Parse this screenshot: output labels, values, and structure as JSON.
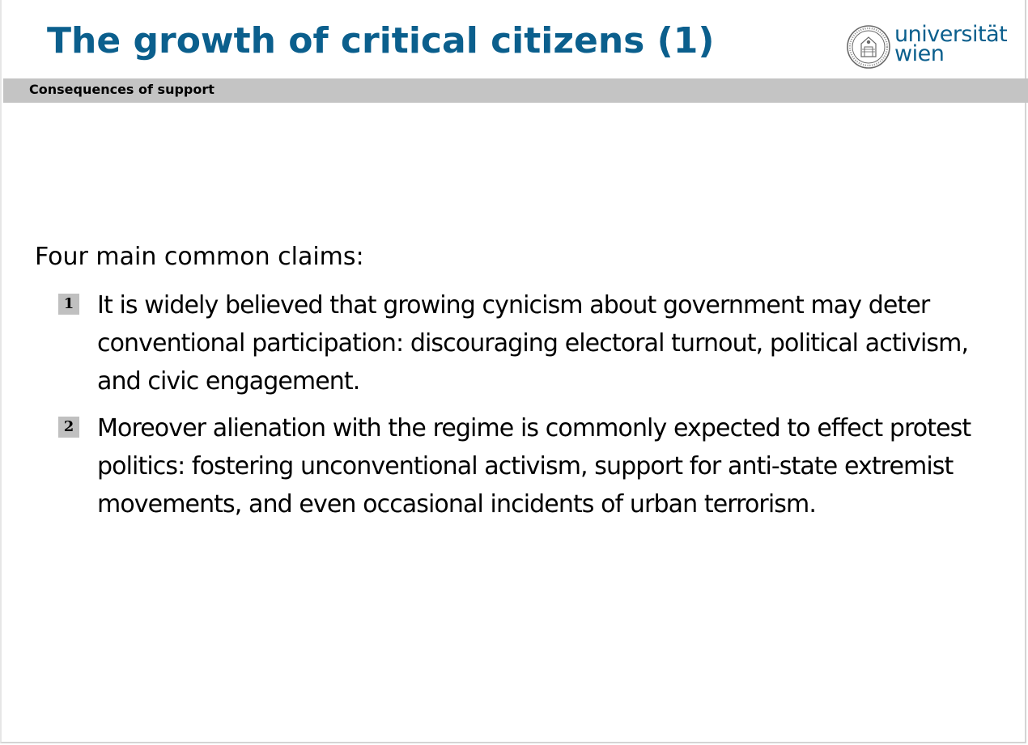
{
  "header": {
    "title": "The growth of critical citizens (1)",
    "logo_line1": "universität",
    "logo_line2": "wien"
  },
  "subheader": {
    "section": "Consequences of support"
  },
  "content": {
    "intro": "Four main common claims:",
    "items": [
      {
        "number": "1",
        "text": "It is widely believed that growing cynicism about government may deter conventional participation: discouraging electoral turnout, political activism, and civic engagement."
      },
      {
        "number": "2",
        "text": "Moreover alienation with the regime is commonly expected to effect protest politics: fostering unconventional activism, support for anti-state extremist movements, and even occasional incidents of urban terrorism."
      }
    ]
  },
  "colors": {
    "title": "#0b5f8d",
    "subbar": "#c4c4c4",
    "badge": "#c0c0c0"
  }
}
